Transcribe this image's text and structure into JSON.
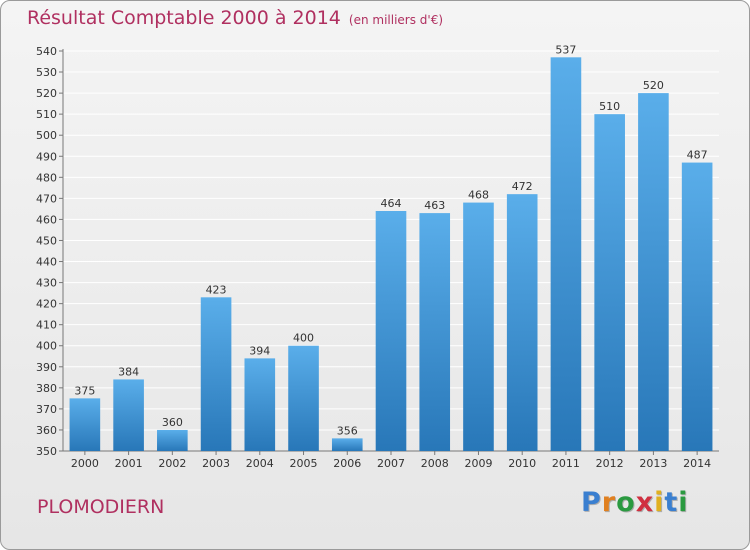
{
  "chart_data": {
    "type": "bar",
    "title": "Résultat Comptable 2000 à 2014",
    "subtitle": "(en milliers d'€)",
    "categories": [
      "2000",
      "2001",
      "2002",
      "2003",
      "2004",
      "2005",
      "2006",
      "2007",
      "2008",
      "2009",
      "2010",
      "2011",
      "2012",
      "2013",
      "2014"
    ],
    "values": [
      375,
      384,
      360,
      423,
      394,
      400,
      356,
      464,
      463,
      468,
      472,
      537,
      510,
      520,
      487
    ],
    "ylim": [
      350,
      540
    ],
    "yticks": [
      350,
      360,
      370,
      380,
      390,
      400,
      410,
      420,
      430,
      440,
      450,
      460,
      470,
      480,
      490,
      500,
      510,
      520,
      530,
      540
    ],
    "grid": true,
    "colors": {
      "bar_top": "#5aaeea",
      "bar_bottom": "#2877b8",
      "title": "#b03060"
    }
  },
  "commune": "PLOMODIERN",
  "logo": {
    "text": "Proxiti",
    "letter_colors": [
      "#3a7fd0",
      "#e08020",
      "#2a9a40",
      "#d03040",
      "#e0b020",
      "#3a7fd0",
      "#2a9a40"
    ]
  }
}
